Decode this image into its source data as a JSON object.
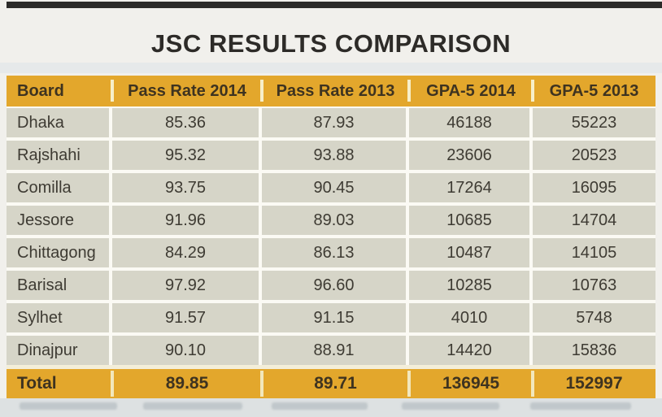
{
  "page": {
    "title": "JSC RESULTS COMPARISON"
  },
  "colors": {
    "page_bg": "#f1f0ec",
    "top_bar": "#2c2b29",
    "title_text": "#2d2b28",
    "gold": "#e3a72c",
    "header_text": "#3e3320",
    "body_bg": "#d6d5c8",
    "body_text": "#3e3b33",
    "separator": "#fbfaf4",
    "header_separator": "#f7efc9",
    "total_separator": "#f2e7bc",
    "pre_total_line": "#f3eed9",
    "bottom_strip": "#dde1e2"
  },
  "table": {
    "headers": [
      "Board",
      "Pass Rate 2014",
      "Pass Rate 2013",
      "GPA-5 2014",
      "GPA-5 2013"
    ],
    "rows": [
      {
        "board": "Dhaka",
        "pass_2014": "85.36",
        "pass_2013": "87.93",
        "gpa5_2014": "46188",
        "gpa5_2013": "55223"
      },
      {
        "board": "Rajshahi",
        "pass_2014": "95.32",
        "pass_2013": "93.88",
        "gpa5_2014": "23606",
        "gpa5_2013": "20523"
      },
      {
        "board": "Comilla",
        "pass_2014": "93.75",
        "pass_2013": "90.45",
        "gpa5_2014": "17264",
        "gpa5_2013": "16095"
      },
      {
        "board": "Jessore",
        "pass_2014": "91.96",
        "pass_2013": "89.03",
        "gpa5_2014": "10685",
        "gpa5_2013": "14704"
      },
      {
        "board": "Chittagong",
        "pass_2014": "84.29",
        "pass_2013": "86.13",
        "gpa5_2014": "10487",
        "gpa5_2013": "14105"
      },
      {
        "board": "Barisal",
        "pass_2014": "97.92",
        "pass_2013": "96.60",
        "gpa5_2014": "10285",
        "gpa5_2013": "10763"
      },
      {
        "board": "Sylhet",
        "pass_2014": "91.57",
        "pass_2013": "91.15",
        "gpa5_2014": "4010",
        "gpa5_2013": "5748"
      },
      {
        "board": "Dinajpur",
        "pass_2014": "90.10",
        "pass_2013": "88.91",
        "gpa5_2014": "14420",
        "gpa5_2013": "15836"
      }
    ],
    "total": {
      "board": "Total",
      "pass_2014": "89.85",
      "pass_2013": "89.71",
      "gpa5_2014": "136945",
      "gpa5_2013": "152997"
    }
  },
  "chart_data": {
    "type": "table",
    "title": "JSC RESULTS COMPARISON",
    "columns": [
      "Board",
      "Pass Rate 2014",
      "Pass Rate 2013",
      "GPA-5 2014",
      "GPA-5 2013"
    ],
    "rows": [
      [
        "Dhaka",
        85.36,
        87.93,
        46188,
        55223
      ],
      [
        "Rajshahi",
        95.32,
        93.88,
        23606,
        20523
      ],
      [
        "Comilla",
        93.75,
        90.45,
        17264,
        16095
      ],
      [
        "Jessore",
        91.96,
        89.03,
        10685,
        14704
      ],
      [
        "Chittagong",
        84.29,
        86.13,
        10487,
        14105
      ],
      [
        "Barisal",
        97.92,
        96.6,
        10285,
        10763
      ],
      [
        "Sylhet",
        91.57,
        91.15,
        4010,
        5748
      ],
      [
        "Dinajpur",
        90.1,
        88.91,
        14420,
        15836
      ]
    ],
    "total_row": [
      "Total",
      89.85,
      89.71,
      136945,
      152997
    ]
  }
}
